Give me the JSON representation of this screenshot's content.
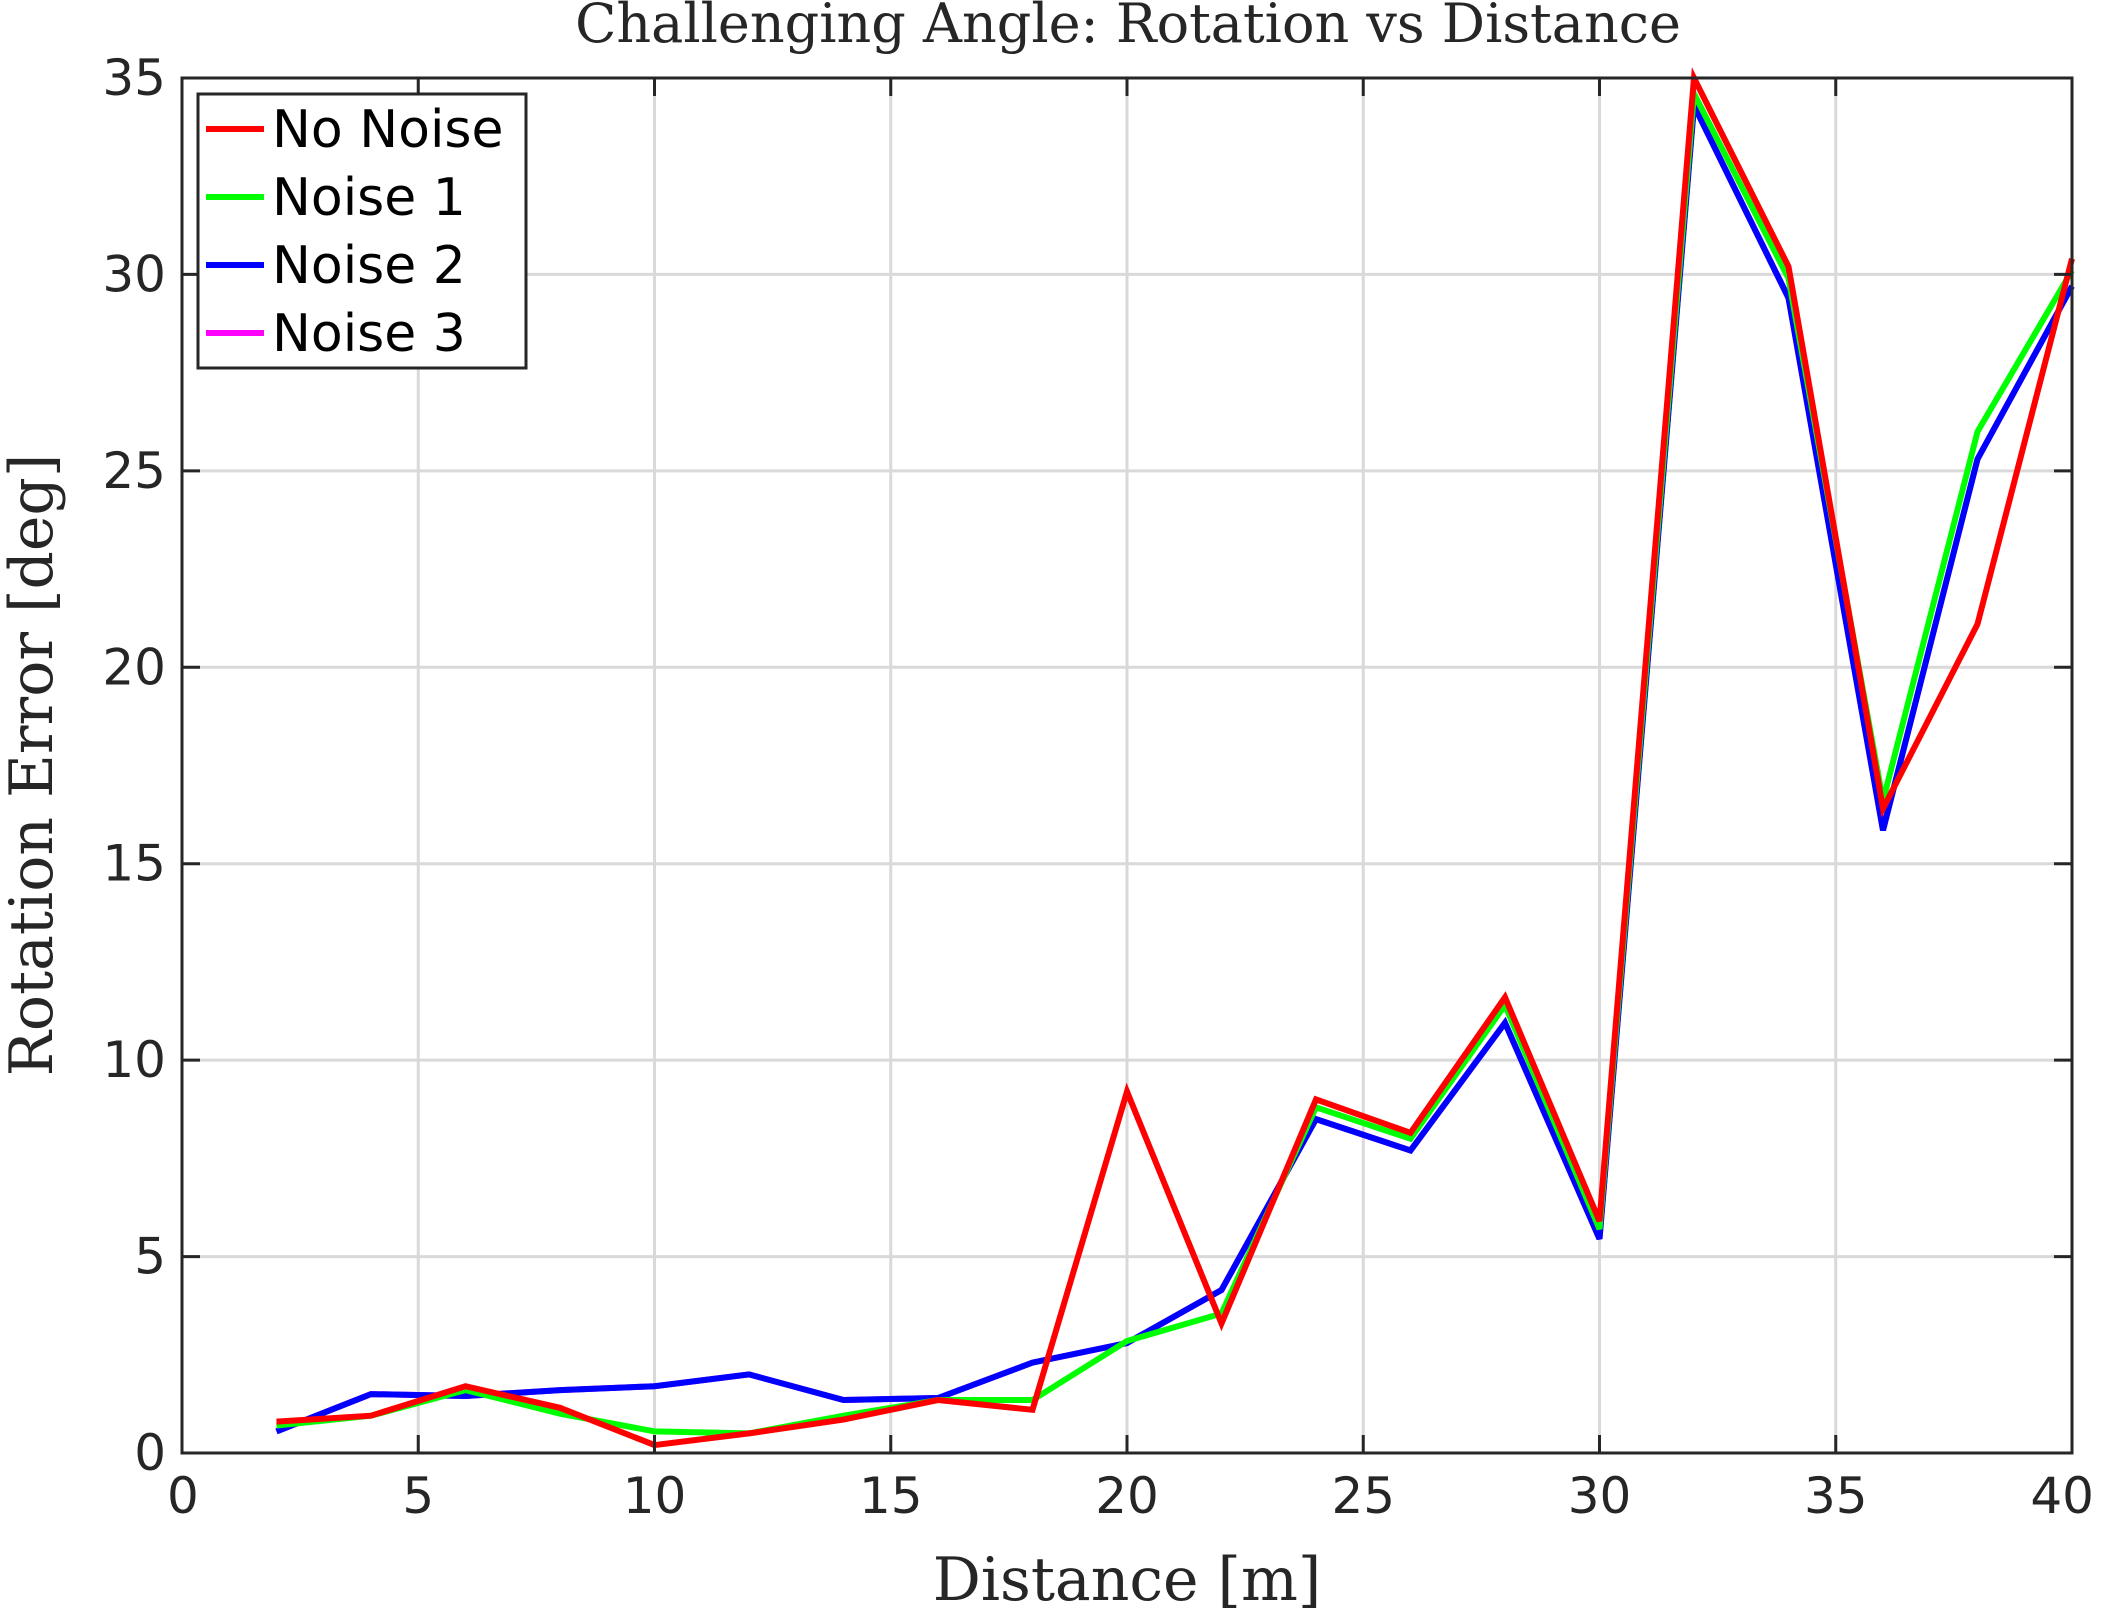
{
  "chart_data": {
    "type": "line",
    "title": "Challenging Angle: Rotation vs Distance",
    "xlabel": "Distance [m]",
    "ylabel": "Rotation Error [deg]",
    "xlim": [
      0,
      40
    ],
    "ylim": [
      0,
      35
    ],
    "xticks": [
      0,
      5,
      10,
      15,
      20,
      25,
      30,
      35,
      40
    ],
    "yticks": [
      0,
      5,
      10,
      15,
      20,
      25,
      30,
      35
    ],
    "grid": true,
    "legend_position": "top-left",
    "x": [
      2,
      4,
      6,
      8,
      10,
      12,
      14,
      16,
      18,
      20,
      22,
      24,
      26,
      28,
      30,
      32,
      34,
      36,
      38,
      40
    ],
    "series": [
      {
        "name": "No Noise",
        "color": "#ff0000",
        "values": [
          0.8,
          0.95,
          1.7,
          1.15,
          0.2,
          0.5,
          0.85,
          1.35,
          1.1,
          9.2,
          3.3,
          9.0,
          8.15,
          11.6,
          5.9,
          35.0,
          30.2,
          16.4,
          21.1,
          30.4
        ]
      },
      {
        "name": "Noise 1",
        "color": "#00ff00",
        "values": [
          0.7,
          0.95,
          1.6,
          1.0,
          0.55,
          0.5,
          0.95,
          1.35,
          1.35,
          2.85,
          3.55,
          8.8,
          8.0,
          11.4,
          5.7,
          34.6,
          29.9,
          16.6,
          26.0,
          30.1
        ]
      },
      {
        "name": "Noise 2",
        "color": "#0000ff",
        "values": [
          0.55,
          1.5,
          1.45,
          1.6,
          1.7,
          2.0,
          1.35,
          1.4,
          2.3,
          2.8,
          4.15,
          8.5,
          7.7,
          10.95,
          5.45,
          34.3,
          29.4,
          15.85,
          25.3,
          29.7
        ]
      },
      {
        "name": "Noise 3",
        "color": "#ff00ff",
        "values": [
          0.55,
          1.5,
          1.45,
          1.6,
          1.7,
          2.0,
          1.35,
          1.4,
          2.3,
          2.8,
          4.15,
          8.5,
          7.7,
          10.95,
          5.45,
          34.3,
          29.4,
          15.85,
          25.3,
          29.7
        ]
      }
    ]
  }
}
